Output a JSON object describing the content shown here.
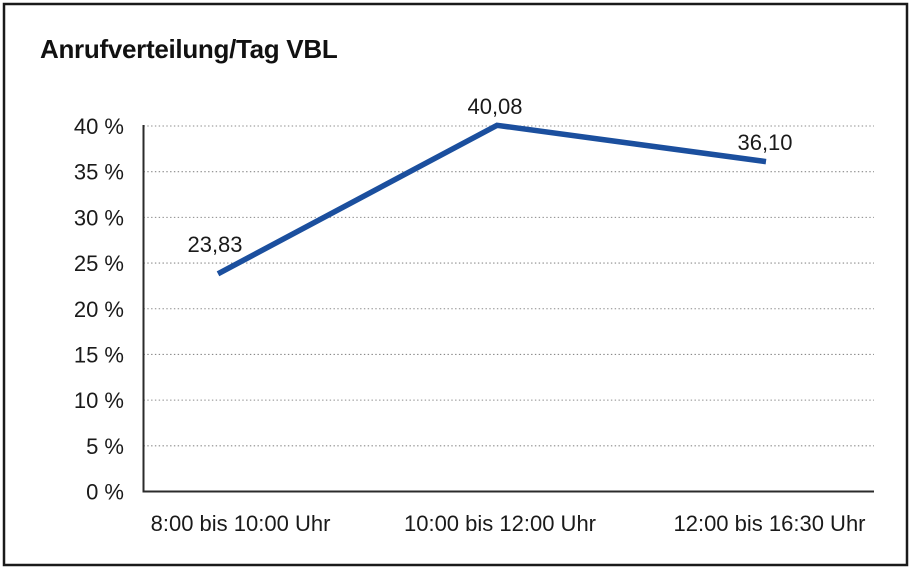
{
  "page": {
    "background_color": "#ffffff",
    "border_color": "#1a1a1a"
  },
  "chart_data": {
    "type": "line",
    "title": "Anrufverteilung/Tag VBL",
    "categories": [
      "8:00 bis 10:00 Uhr",
      "10:00 bis 12:00 Uhr",
      "12:00 bis 16:30 Uhr"
    ],
    "values": [
      23.83,
      40.08,
      36.1
    ],
    "value_labels": [
      "23,83",
      "40,08",
      "36,10"
    ],
    "xlabel": "",
    "ylabel": "",
    "ylim": [
      0,
      40
    ],
    "ytick_step": 5,
    "ytick_labels": [
      "0 %",
      "5 %",
      "10 %",
      "15 %",
      "20 %",
      "25 %",
      "30 %",
      "35 %",
      "40 %"
    ],
    "grid": "horizontal dotted",
    "legend": "none",
    "line_color": "#1B4F9E",
    "axis_color": "#2b2b2b",
    "grid_color": "#8a8a8a",
    "text_color": "#1a1a1a"
  }
}
